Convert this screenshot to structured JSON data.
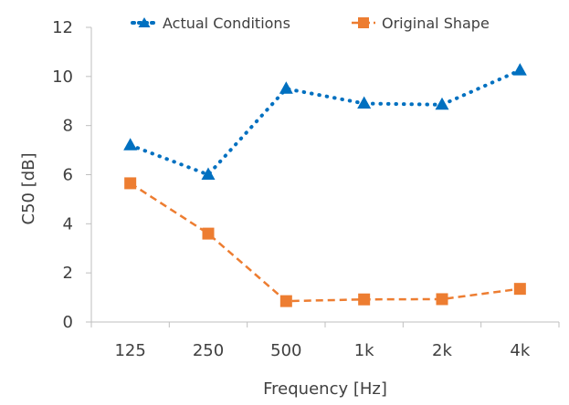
{
  "chart_data": {
    "type": "line",
    "categories": [
      "125",
      "250",
      "500",
      "1k",
      "2k",
      "4k"
    ],
    "series": [
      {
        "name": "Actual Conditions",
        "values": [
          7.2,
          6.0,
          9.5,
          8.9,
          8.85,
          10.25
        ],
        "color": "#0070c0",
        "line_style": "dotted",
        "marker": "triangle"
      },
      {
        "name": "Original Shape",
        "values": [
          5.65,
          3.6,
          0.85,
          0.92,
          0.93,
          1.35
        ],
        "color": "#ed7d31",
        "line_style": "dashed",
        "marker": "square"
      }
    ],
    "xlabel": "Frequency [Hz]",
    "ylabel": "C50 [dB]",
    "ylim": [
      0,
      12
    ],
    "yticks": [
      "0",
      "2",
      "4",
      "6",
      "8",
      "10",
      "12"
    ],
    "grid": false,
    "legend_position": "top"
  }
}
